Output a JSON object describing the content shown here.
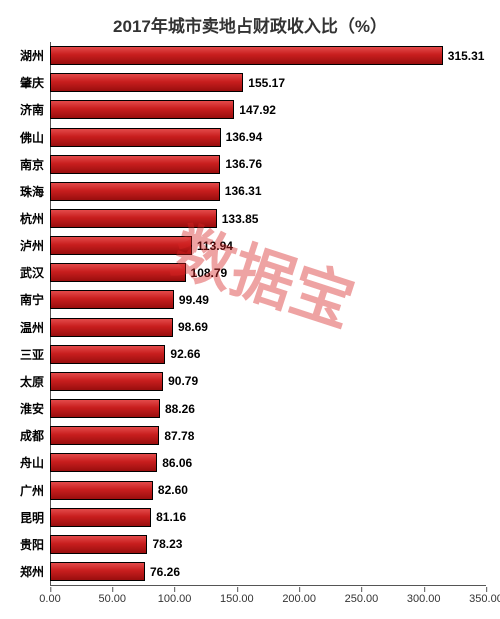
{
  "chart": {
    "type": "bar-horizontal",
    "title": "2017年城市卖地占财政收入比（%）",
    "title_fontsize": 17,
    "title_color": "#333333",
    "background_color": "#ffffff",
    "bar_fill_top": "#e34a4a",
    "bar_fill_mid": "#c81e1e",
    "bar_fill_bottom": "#9a0e0e",
    "bar_border": "#000000",
    "axis_color": "#555555",
    "label_color": "#000000",
    "label_fontsize": 12,
    "xlim": [
      0,
      350
    ],
    "xtick_step": 50,
    "xticks": [
      "0.00",
      "50.00",
      "100.00",
      "150.00",
      "200.00",
      "250.00",
      "300.00",
      "350.00"
    ],
    "categories": [
      "湖州",
      "肇庆",
      "济南",
      "佛山",
      "南京",
      "珠海",
      "杭州",
      "泸州",
      "武汉",
      "南宁",
      "温州",
      "三亚",
      "太原",
      "淮安",
      "成都",
      "舟山",
      "广州",
      "昆明",
      "贵阳",
      "郑州"
    ],
    "values": [
      315.31,
      155.17,
      147.92,
      136.94,
      136.76,
      136.31,
      133.85,
      113.94,
      108.79,
      99.49,
      98.69,
      92.66,
      90.79,
      88.26,
      87.78,
      86.06,
      82.6,
      81.16,
      78.23,
      76.26
    ],
    "value_labels": [
      "315.31",
      "155.17",
      "147.92",
      "136.94",
      "136.76",
      "136.31",
      "133.85",
      "113.94",
      "108.79",
      "99.49",
      "98.69",
      "92.66",
      "90.79",
      "88.26",
      "87.78",
      "86.06",
      "82.60",
      "81.16",
      "78.23",
      "76.26"
    ],
    "watermark": {
      "text": "数据宝",
      "color": "rgba(214,36,36,0.42)",
      "fontsize": 62
    }
  }
}
